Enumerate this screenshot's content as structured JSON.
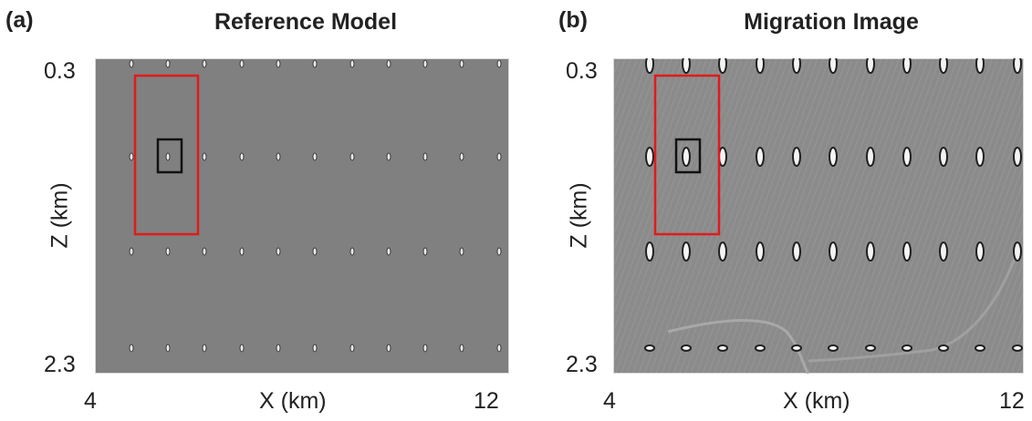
{
  "panels": [
    {
      "label": "(a)",
      "title": "Reference Model",
      "x_axis": {
        "label": "X (km)",
        "min": "4",
        "max": "12"
      },
      "y_axis": {
        "label": "Z (km)",
        "min": "0.3",
        "max": "2.3"
      },
      "background": "#808080",
      "markers": {
        "red_box_color": "#e01b1b",
        "black_box_color": "#111111"
      }
    },
    {
      "label": "(b)",
      "title": "Migration Image",
      "x_axis": {
        "label": "X (km)",
        "min": "4",
        "max": "12"
      },
      "y_axis": {
        "label": "Z (km)",
        "min": "0.3",
        "max": "2.3"
      },
      "background": "#8a8a8a",
      "markers": {
        "red_box_color": "#e01b1b",
        "black_box_color": "#111111"
      }
    }
  ]
}
